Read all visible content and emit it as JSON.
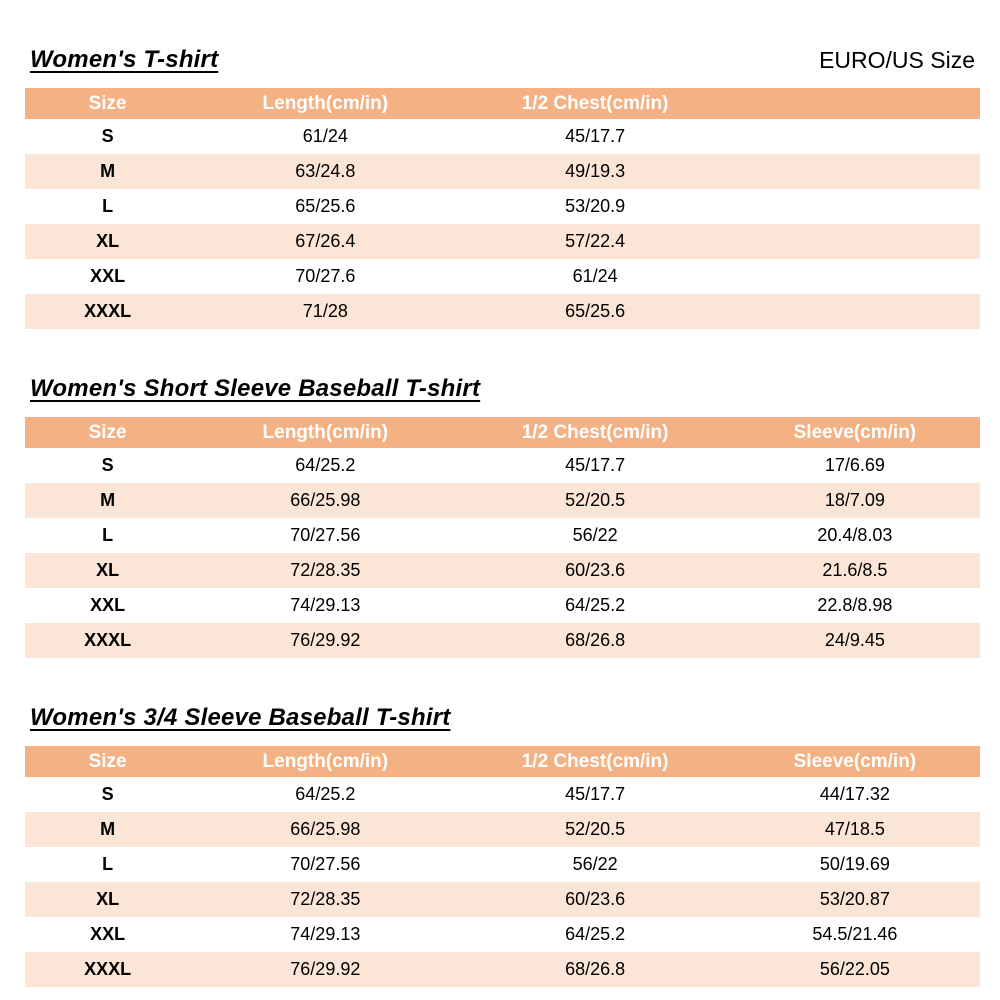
{
  "page": {
    "size_system_label": "EURO/US Size"
  },
  "colors": {
    "header_bg": "#F4B183",
    "row_alt_bg": "#FBE5D6",
    "header_text": "#FFFFFF",
    "text": "#000000"
  },
  "tables": [
    {
      "title": "Women's T-shirt",
      "headers": [
        "Size",
        "Length(cm/in)",
        "1/2 Chest(cm/in)",
        ""
      ],
      "rows": [
        [
          "S",
          "61/24",
          "45/17.7",
          ""
        ],
        [
          "M",
          "63/24.8",
          "49/19.3",
          ""
        ],
        [
          "L",
          "65/25.6",
          "53/20.9",
          ""
        ],
        [
          "XL",
          "67/26.4",
          "57/22.4",
          ""
        ],
        [
          "XXL",
          "70/27.6",
          "61/24",
          ""
        ],
        [
          "XXXL",
          "71/28",
          "65/25.6",
          ""
        ]
      ]
    },
    {
      "title": "Women's Short Sleeve Baseball T-shirt",
      "headers": [
        "Size",
        "Length(cm/in)",
        "1/2 Chest(cm/in)",
        "Sleeve(cm/in)"
      ],
      "rows": [
        [
          "S",
          "64/25.2",
          "45/17.7",
          "17/6.69"
        ],
        [
          "M",
          "66/25.98",
          "52/20.5",
          "18/7.09"
        ],
        [
          "L",
          "70/27.56",
          "56/22",
          "20.4/8.03"
        ],
        [
          "XL",
          "72/28.35",
          "60/23.6",
          "21.6/8.5"
        ],
        [
          "XXL",
          "74/29.13",
          "64/25.2",
          "22.8/8.98"
        ],
        [
          "XXXL",
          "76/29.92",
          "68/26.8",
          "24/9.45"
        ]
      ]
    },
    {
      "title": "Women's 3/4 Sleeve Baseball T-shirt",
      "headers": [
        "Size",
        "Length(cm/in)",
        "1/2 Chest(cm/in)",
        "Sleeve(cm/in)"
      ],
      "rows": [
        [
          "S",
          "64/25.2",
          "45/17.7",
          "44/17.32"
        ],
        [
          "M",
          "66/25.98",
          "52/20.5",
          "47/18.5"
        ],
        [
          "L",
          "70/27.56",
          "56/22",
          "50/19.69"
        ],
        [
          "XL",
          "72/28.35",
          "60/23.6",
          "53/20.87"
        ],
        [
          "XXL",
          "74/29.13",
          "64/25.2",
          "54.5/21.46"
        ],
        [
          "XXXL",
          "76/29.92",
          "68/26.8",
          "56/22.05"
        ]
      ]
    }
  ]
}
